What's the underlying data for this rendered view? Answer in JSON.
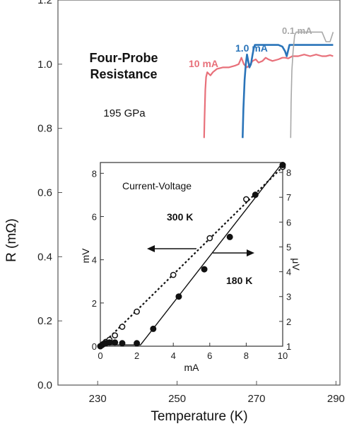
{
  "chart_data": [
    {
      "type": "line",
      "xlabel": "Temperature (K)",
      "ylabel": "R (mΩ)",
      "xlim": [
        220,
        291
      ],
      "ylim": [
        0,
        1.2
      ],
      "xticks": [
        230,
        250,
        270,
        290
      ],
      "yticks": [
        "0.0",
        "0.2",
        "0.4",
        "0.6",
        "0.8",
        "1.0",
        "1.2"
      ],
      "annotations": {
        "title_line1": "Four-Probe",
        "title_line2": "Resistance",
        "pressure": "195 GPa"
      },
      "series": [
        {
          "name": "10 mA",
          "color": "#e8707a",
          "x": [
            256.8,
            256.9,
            257.1,
            257.3,
            257.6,
            258.0,
            258.4,
            259.0,
            260.0,
            261.5,
            263.0,
            264.5,
            265.5,
            266.2,
            266.8,
            267.6,
            268.4,
            269.0,
            269.8,
            270.5,
            271.5,
            272.3,
            273.0,
            274.0,
            275.5,
            276.5,
            277.2,
            278.0,
            279.0,
            280.5,
            282.0,
            283.5,
            285.0,
            286.5,
            287.5,
            288.5,
            289.3
          ],
          "y": [
            0.77,
            0.83,
            0.92,
            0.96,
            0.975,
            0.97,
            0.965,
            0.975,
            0.985,
            0.99,
            0.99,
            0.995,
            1.0,
            1.02,
            1.0,
            0.99,
            1.0,
            1.01,
            1.015,
            1.005,
            1.01,
            1.02,
            1.015,
            1.01,
            1.015,
            1.02,
            1.02,
            1.018,
            1.025,
            1.025,
            1.03,
            1.025,
            1.03,
            1.025,
            1.025,
            1.028,
            1.025
          ]
        },
        {
          "name": "1.0 mA",
          "color": "#2a74b9",
          "x": [
            266.5,
            266.7,
            267.0,
            267.3,
            267.6,
            267.9,
            268.2,
            268.6,
            269.0,
            269.3,
            269.6,
            270.0,
            271.0,
            272.5,
            274.0,
            275.5,
            276.5,
            277.2,
            277.6,
            277.9,
            278.3,
            278.8,
            280.0,
            282.0,
            284.0,
            286.0,
            288.0,
            289.3
          ],
          "y": [
            0.77,
            0.86,
            0.95,
            1.0,
            1.03,
            1.01,
            0.99,
            1.0,
            1.03,
            1.05,
            1.06,
            1.06,
            1.06,
            1.06,
            1.06,
            1.06,
            1.055,
            1.04,
            1.025,
            1.04,
            1.06,
            1.06,
            1.06,
            1.06,
            1.06,
            1.06,
            1.06,
            1.06
          ]
        },
        {
          "name": "0.1 mA",
          "color": "#a8a8a8",
          "x": [
            278.6,
            278.7,
            278.9,
            279.2,
            279.6,
            280.0,
            281.0,
            283.0,
            284.5,
            285.5,
            286.5,
            287.5,
            288.5,
            289.3
          ],
          "y": [
            0.77,
            0.88,
            0.98,
            1.04,
            1.09,
            1.1,
            1.1,
            1.1,
            1.1,
            1.1,
            1.1,
            1.07,
            1.07,
            1.1
          ]
        }
      ]
    },
    {
      "type": "scatter",
      "title": "Current-Voltage",
      "xlabel": "mA",
      "ylabel_left": "mV",
      "ylabel_right": "μV",
      "xlim": [
        0,
        10
      ],
      "ylim_left": [
        0,
        8.5
      ],
      "ylim_right": [
        1,
        8.4
      ],
      "xticks": [
        0,
        2,
        4,
        6,
        8,
        10
      ],
      "yticks_left": [
        0,
        2,
        4,
        6,
        8
      ],
      "yticks_right": [
        1,
        2,
        3,
        4,
        5,
        6,
        7,
        8
      ],
      "annotations": {
        "label_300K": "300 K",
        "label_180K": "180 K"
      },
      "series": [
        {
          "name": "300 K",
          "style": "open-circles-dotted",
          "axis": "left",
          "x": [
            0.0,
            0.15,
            0.3,
            0.5,
            0.8,
            1.2,
            2.0,
            4.0,
            6.0,
            8.0,
            10.0
          ],
          "y": [
            0.0,
            0.1,
            0.2,
            0.3,
            0.5,
            0.9,
            1.6,
            3.3,
            5.0,
            6.8,
            8.3
          ]
        },
        {
          "name": "180 K",
          "style": "filled-circles-solid",
          "axis": "right",
          "x": [
            0.0,
            0.1,
            0.2,
            0.3,
            0.5,
            0.8,
            1.2,
            2.0,
            2.9,
            4.3,
            5.7,
            7.1,
            8.5,
            10.0
          ],
          "y": [
            1.0,
            1.05,
            1.1,
            1.12,
            1.15,
            1.15,
            1.12,
            1.12,
            1.7,
            3.0,
            4.1,
            5.4,
            7.1,
            8.3
          ]
        }
      ]
    }
  ]
}
